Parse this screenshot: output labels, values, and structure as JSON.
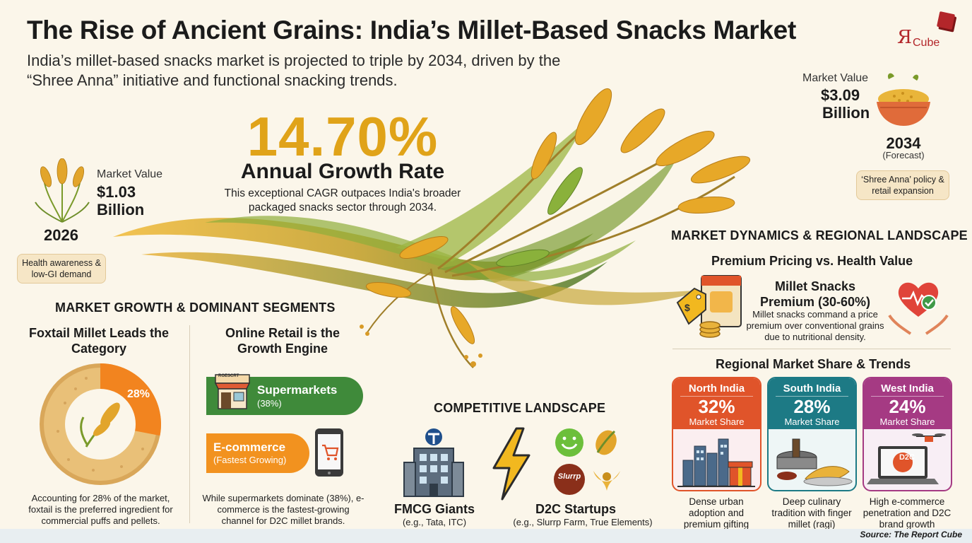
{
  "header": {
    "title": "The Rise of Ancient Grains: India’s Millet-Based Snacks Market",
    "subtitle": "India’s millet-based snacks market is projected to triple by 2034, driven by the “Shree Anna” initiative and functional snacking trends."
  },
  "logo": {
    "r": "Я",
    "text": "Cube"
  },
  "growth": {
    "cagr": "14.70%",
    "label": "Annual Growth Rate",
    "description": "This exceptional CAGR outpaces India's broader packaged snacks sector through 2034."
  },
  "value_2026": {
    "label": "Market Value",
    "value": "$1.03",
    "unit": "Billion",
    "year": "2026",
    "driver": "Health awareness & low-GI demand"
  },
  "value_2034": {
    "label": "Market Value",
    "value": "$3.09",
    "unit": "Billion",
    "year": "2034",
    "note": "(Forecast)",
    "driver": "‘Shree Anna’ policy & retail expansion"
  },
  "segments": {
    "heading": "MARKET GROWTH & DOMINANT SEGMENTS",
    "foxtail": {
      "title": "Foxtail Millet Leads the Category",
      "share_label": "28%",
      "share": 0.28,
      "desc": "Accounting for 28% of the market, foxtail is the preferred ingredient for commercial puffs and pellets."
    },
    "online": {
      "title": "Online Retail is the Growth Engine",
      "supermarkets": {
        "label": "Supermarkets",
        "share": "(38%)",
        "store_sign": "ROESCRT"
      },
      "ecommerce": {
        "label": "E-commerce",
        "note": "(Fastest Growing)"
      },
      "desc": "While supermarkets dominate (38%), e-commerce is the fastest-growing channel for D2C millet brands."
    }
  },
  "competitive": {
    "heading": "COMPETITIVE LANDSCAPE",
    "fmcg": {
      "title": "FMCG Giants",
      "examples": "(e.g., Tata, ITC)"
    },
    "d2c": {
      "title": "D2C Startups",
      "examples": "(e.g., Slurrp Farm, True Elements)",
      "logo_text": "Slurrp"
    }
  },
  "dynamics": {
    "heading": "MARKET DYNAMICS & REGIONAL LANDSCAPE",
    "pricing": {
      "title": "Premium Pricing vs. Health Value",
      "premium_title": "Millet Snacks Premium (30-60%)",
      "premium_desc": "Millet snacks command a price premium over conventional grains due to nutritional density."
    },
    "regional_title": "Regional Market Share & Trends",
    "regions": [
      {
        "name": "North India",
        "pct": "32%",
        "share_label": "Market Share",
        "desc": "Dense urban adoption and premium gifting",
        "color": "#e0542a"
      },
      {
        "name": "South India",
        "pct": "28%",
        "share_label": "Market Share",
        "desc": "Deep culinary tradition with finger millet (ragi)",
        "color": "#1d7a85"
      },
      {
        "name": "West India",
        "pct": "24%",
        "share_label": "Market Share",
        "desc": "High e-commerce penetration and D2C brand growth",
        "color": "#a53a83",
        "badge": "D2C"
      }
    ]
  },
  "footer": {
    "source": "Source: The Report Cube"
  }
}
